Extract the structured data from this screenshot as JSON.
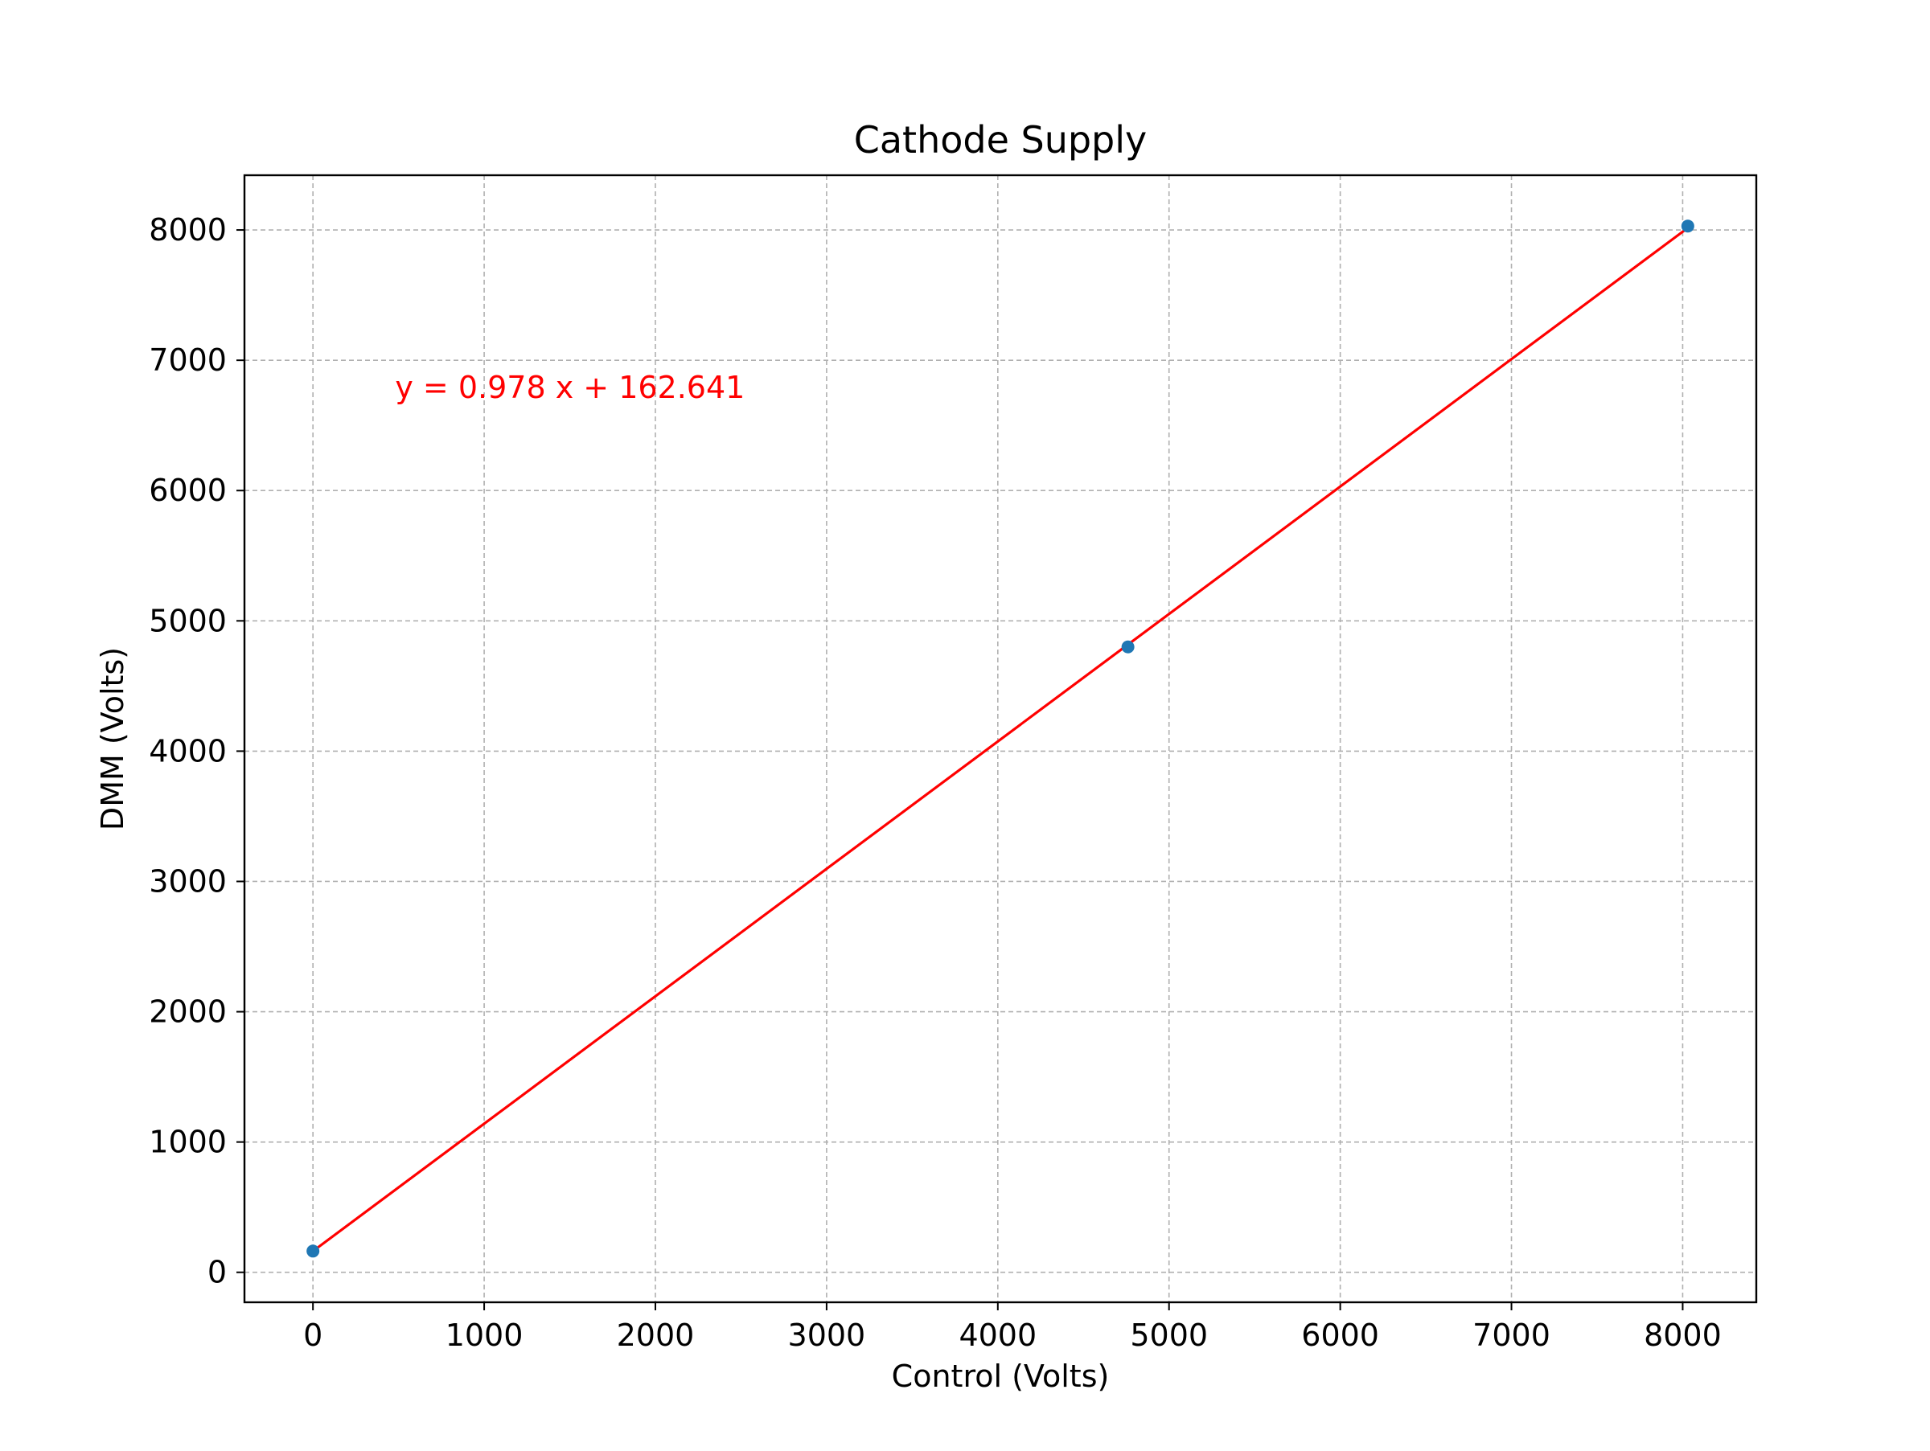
{
  "chart_data": {
    "type": "scatter",
    "title": "Cathode Supply",
    "xlabel": "Control (Volts)",
    "ylabel": "DMM (Volts)",
    "xlim": [
      -400,
      8430
    ],
    "ylim": [
      -230,
      8420
    ],
    "xticks": [
      0,
      1000,
      2000,
      3000,
      4000,
      5000,
      6000,
      7000,
      8000
    ],
    "yticks": [
      0,
      1000,
      2000,
      3000,
      4000,
      5000,
      6000,
      7000,
      8000
    ],
    "grid": true,
    "series": [
      {
        "type": "scatter",
        "color": "#1f77b4",
        "x": [
          0,
          4760,
          8030
        ],
        "y": [
          163,
          4800,
          8030
        ]
      },
      {
        "type": "line",
        "color": "#ff0000",
        "x": [
          0,
          8030
        ],
        "y": [
          162.641,
          8016.0
        ]
      }
    ],
    "annotations": [
      {
        "text": "y = 0.978 x + 162.641",
        "x": 480,
        "y": 6710,
        "color": "#ff0000"
      }
    ]
  }
}
